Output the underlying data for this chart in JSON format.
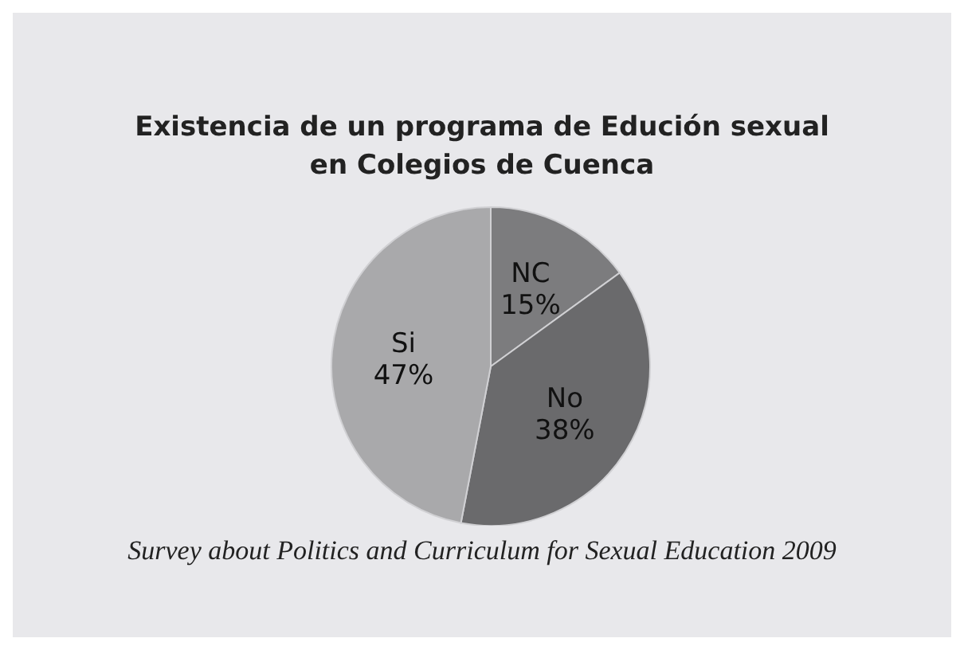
{
  "chart_data": {
    "type": "pie",
    "title": "Existencia de un programa de Edución sexual en Colegios de Cuenca",
    "categories": [
      "NC",
      "No",
      "Si"
    ],
    "values": [
      15,
      38,
      47
    ],
    "colors": [
      "#7c7c7e",
      "#6a6a6c",
      "#a9a9ab"
    ],
    "value_labels": [
      "15%",
      "38%",
      "47%"
    ],
    "annotations": [
      "Survey about Politics and Curriculum for Sexual Education 2009"
    ],
    "legend": false
  }
}
